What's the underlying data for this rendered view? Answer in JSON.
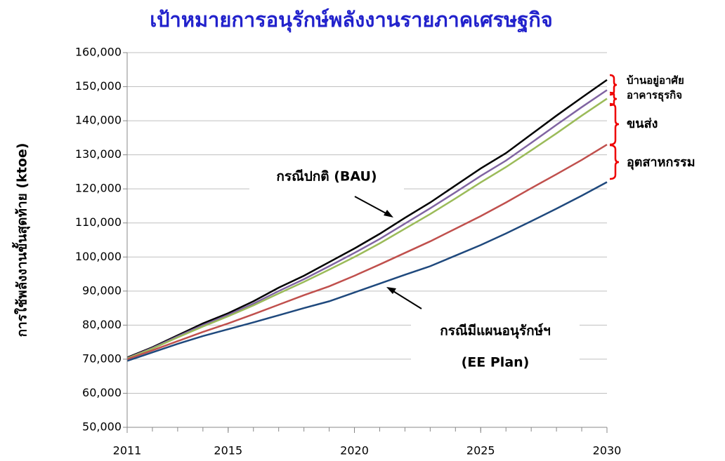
{
  "chart_data": {
    "type": "line",
    "title": "เป้าหมายการอนุรักษ์พลังงานรายภาคเศรษฐกิจ",
    "y_label": "การใช้พลังงานขั้นสุดท้าย (ktoe)",
    "annotations": {
      "bau": "กรณีปกติ (BAU)",
      "ee_line1": "กรณีมีแผนอนุรักษ์ฯ",
      "ee_line2": "(EE Plan)",
      "residential": "บ้านอยู่อาศัย",
      "commercial": "อาคารธุรกิจ",
      "transport": "ขนส่ง",
      "industry": "อุตสาหกรรม"
    },
    "x": [
      2011,
      2012,
      2013,
      2014,
      2015,
      2016,
      2017,
      2018,
      2019,
      2020,
      2021,
      2022,
      2023,
      2024,
      2025,
      2026,
      2027,
      2028,
      2029,
      2030
    ],
    "xlim": [
      2011,
      2030
    ],
    "xticks": [
      2011,
      2015,
      2020,
      2025,
      2030
    ],
    "ylim": [
      50000,
      160000
    ],
    "yticks": [
      {
        "value": 50000,
        "label": "50,000"
      },
      {
        "value": 60000,
        "label": "60,000"
      },
      {
        "value": 70000,
        "label": "70,000"
      },
      {
        "value": 80000,
        "label": "80,000"
      },
      {
        "value": 90000,
        "label": "90,000"
      },
      {
        "value": 100000,
        "label": "100,000"
      },
      {
        "value": 110000,
        "label": "110,000"
      },
      {
        "value": 120000,
        "label": "120,000"
      },
      {
        "value": 130000,
        "label": "130,000"
      },
      {
        "value": 140000,
        "label": "140,000"
      },
      {
        "value": 150000,
        "label": "150,000"
      },
      {
        "value": 160000,
        "label": "160,000"
      }
    ],
    "grid": true,
    "series": [
      {
        "color": "#000000",
        "values": [
          70500,
          73500,
          77000,
          80500,
          83500,
          87000,
          91000,
          94500,
          98500,
          102500,
          106800,
          111500,
          116000,
          121000,
          126000,
          130500,
          136000,
          141500,
          146800,
          152000
        ]
      },
      {
        "color": "#8064a2",
        "values": [
          70300,
          73300,
          76700,
          80000,
          83000,
          86300,
          90000,
          93500,
          97300,
          101200,
          105300,
          109800,
          114300,
          119000,
          123800,
          128300,
          133500,
          138800,
          144000,
          149000
        ]
      },
      {
        "color": "#9bbb59",
        "values": [
          70200,
          73100,
          76400,
          79600,
          82600,
          85800,
          89300,
          92700,
          96300,
          100000,
          104000,
          108300,
          112600,
          117200,
          121900,
          126400,
          131300,
          136300,
          141500,
          146500
        ]
      },
      {
        "color": "#c0504d",
        "values": [
          70000,
          72600,
          75300,
          78000,
          80500,
          83200,
          86000,
          88800,
          91400,
          94500,
          97800,
          101200,
          104600,
          108300,
          112000,
          116000,
          120200,
          124300,
          128500,
          133000
        ]
      },
      {
        "color": "#1f497d",
        "values": [
          69500,
          72000,
          74500,
          76800,
          78800,
          80800,
          82900,
          85000,
          87000,
          89600,
          92200,
          94800,
          97300,
          100400,
          103500,
          106900,
          110500,
          114200,
          118000,
          122000
        ]
      }
    ]
  }
}
